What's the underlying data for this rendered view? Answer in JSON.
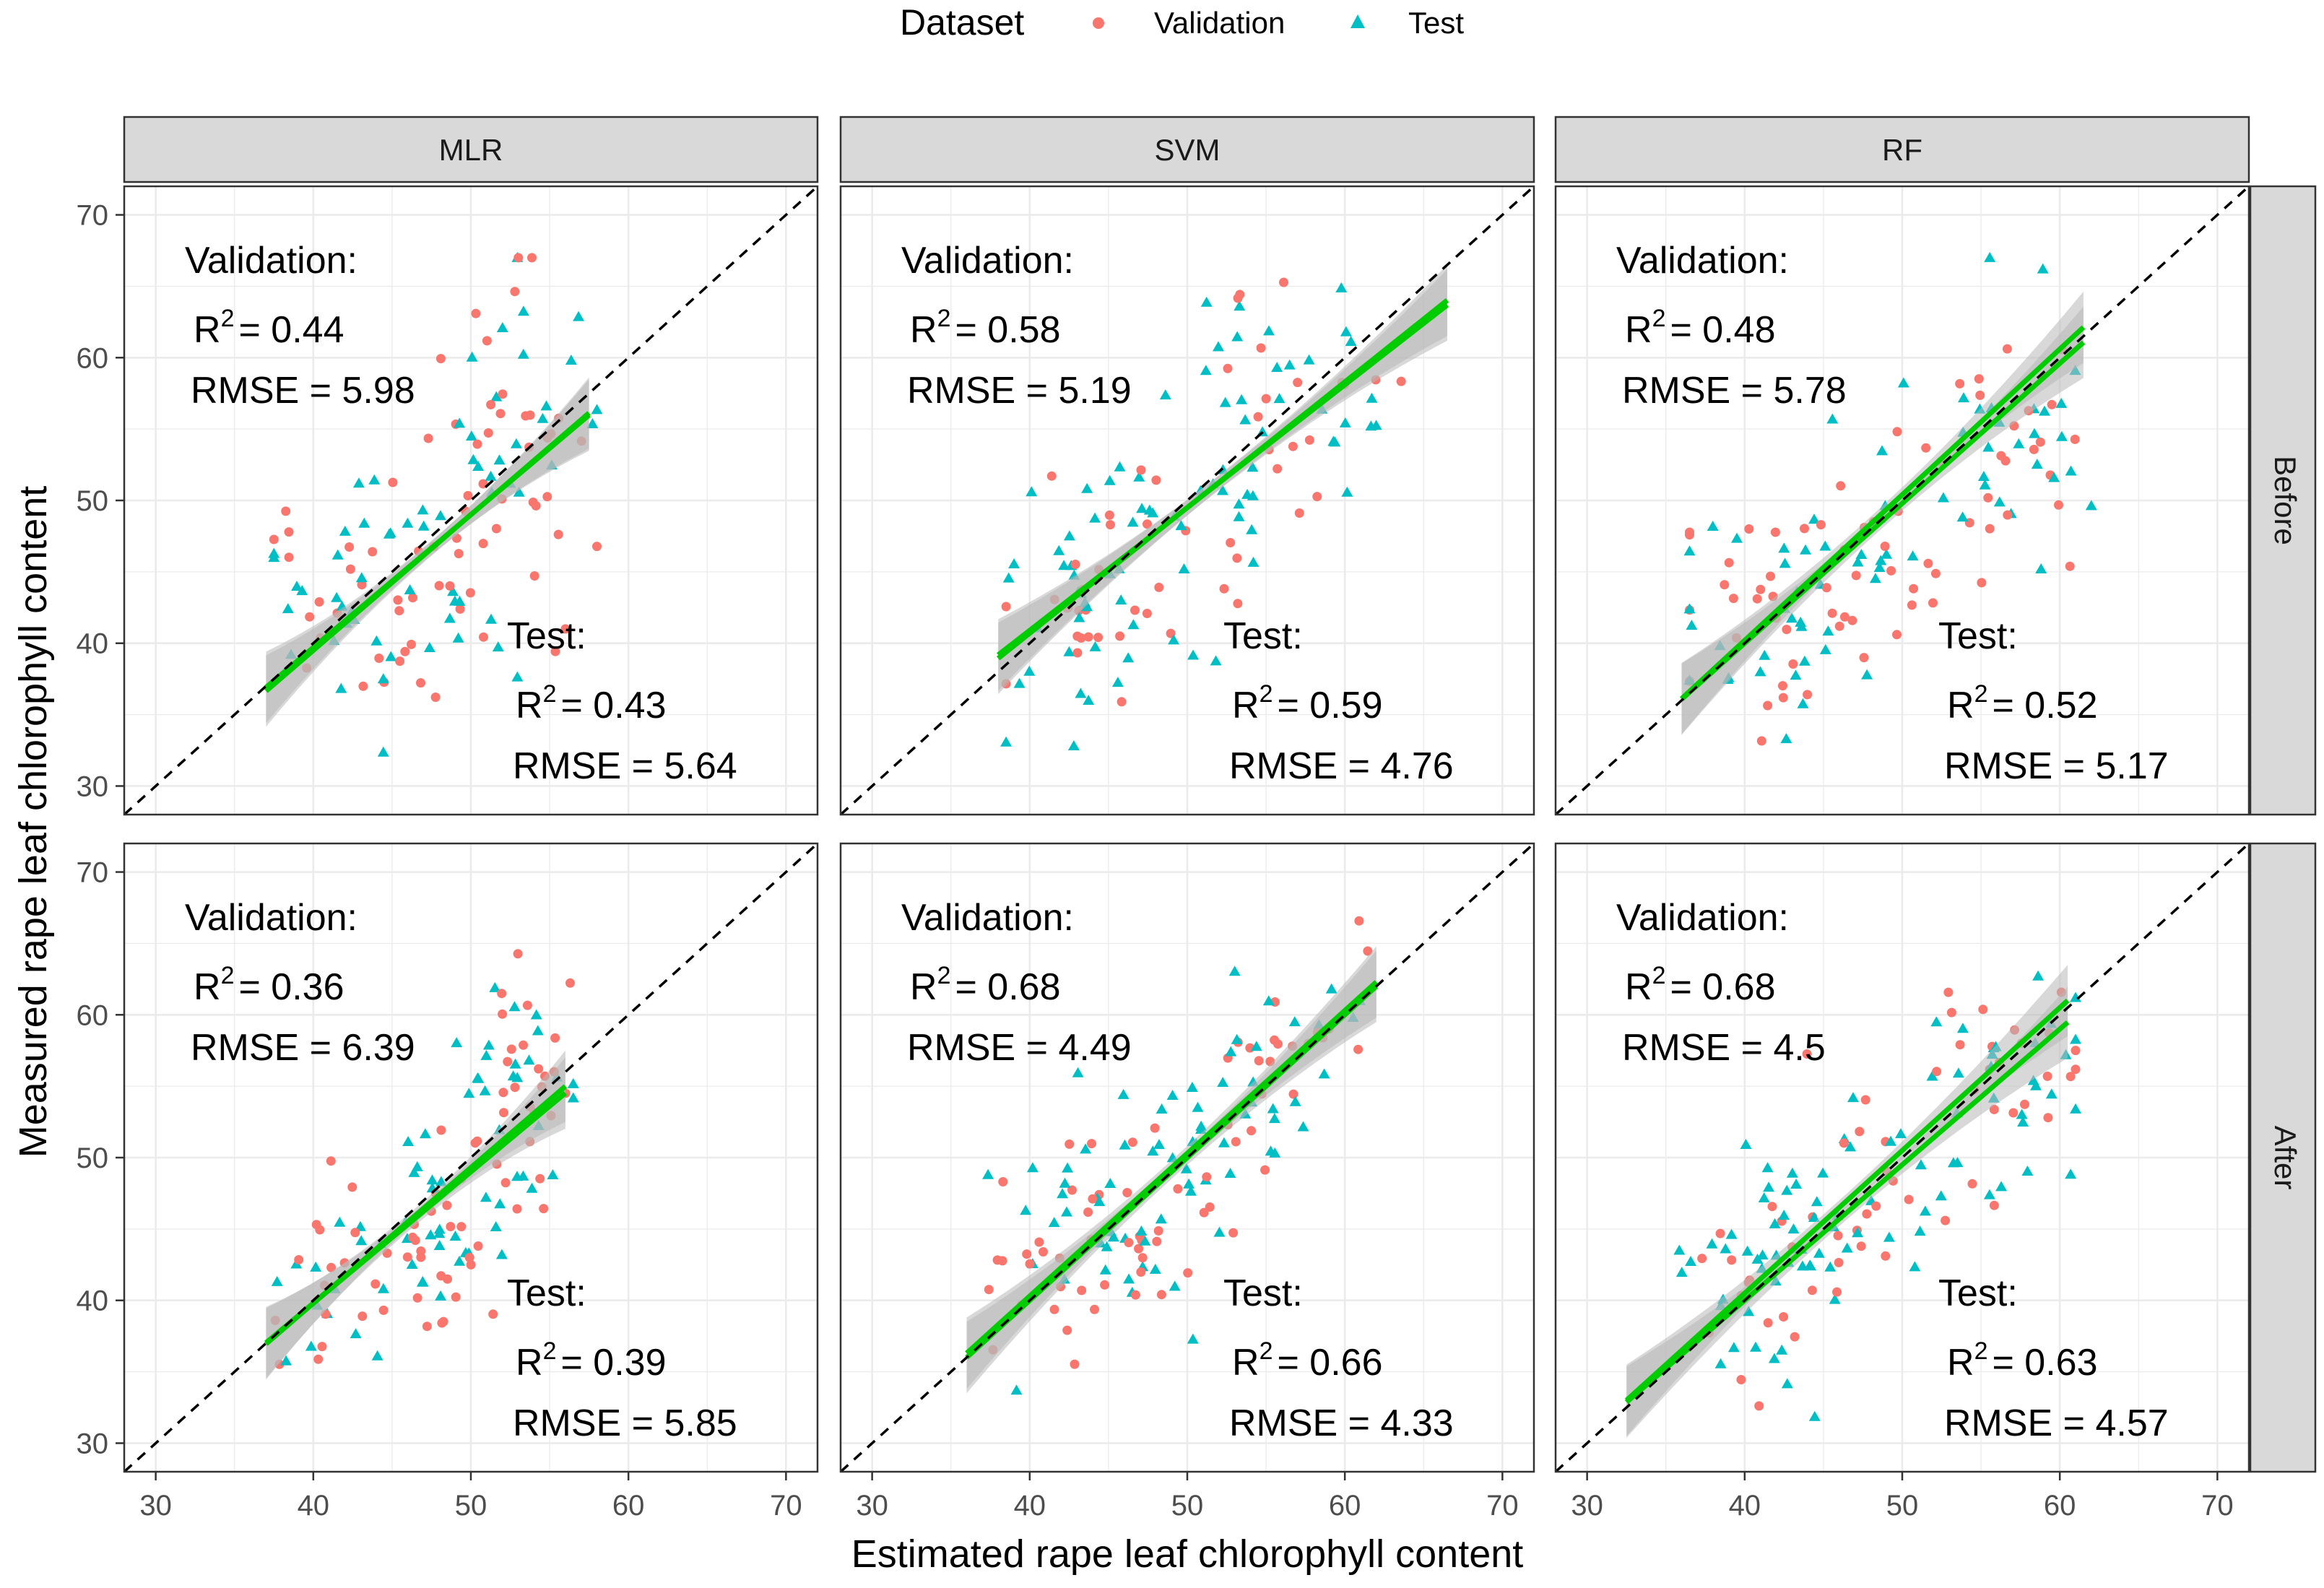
{
  "legend": {
    "title": "Dataset",
    "items": [
      {
        "label": "Validation",
        "shape": "circle",
        "color": "#F8766D"
      },
      {
        "label": "Test",
        "shape": "triangle",
        "color": "#00BFC4"
      }
    ]
  },
  "columns": [
    "MLR",
    "SVM",
    "RF"
  ],
  "rows": [
    "Before",
    "After"
  ],
  "xlabel": "Estimated rape leaf chlorophyll content",
  "ylabel": "Measured rape leaf chlorophyll content",
  "colors": {
    "validation": "#F8766D",
    "test": "#00BFC4",
    "fit": "#00CC00",
    "band": "#B8B8B8",
    "strip": "#D9D9D9",
    "grid": "#EBEBEB",
    "identity": "#000000"
  },
  "chart_data": {
    "type": "scatter",
    "xlim": [
      28,
      72
    ],
    "ylim": [
      28,
      72
    ],
    "xticks": [
      30,
      40,
      50,
      60,
      70
    ],
    "yticks": [
      30,
      40,
      50,
      60,
      70
    ],
    "identity_line": "dashed y = x",
    "panels": [
      {
        "model": "MLR",
        "condition": "Before",
        "validation": {
          "header": "Validation:",
          "r2_prefix": "R",
          "r2_exp": "2",
          "r2_value": "= 0.44",
          "rmse": "RMSE = 5.98"
        },
        "test": {
          "header": "Test:",
          "r2_prefix": "R",
          "r2_exp": "2",
          "r2_value": "= 0.43",
          "rmse": "RMSE = 5.64"
        },
        "x_range": [
          37,
          57.5
        ],
        "fits": {
          "validation": [
            0.93,
            2.5
          ],
          "test": [
            0.95,
            1.5
          ]
        },
        "sim": {
          "seed": 11,
          "regions": [
            {
              "cx": 42,
              "cy": 43,
              "sx": 3,
              "sy": 4.5,
              "n": 45
            },
            {
              "cx": 48,
              "cy": 45,
              "sx": 3,
              "sy": 4,
              "n": 30
            },
            {
              "cx": 53,
              "cy": 55,
              "sx": 2.5,
              "sy": 5.5,
              "n": 55
            }
          ]
        }
      },
      {
        "model": "SVM",
        "condition": "Before",
        "validation": {
          "header": "Validation:",
          "r2_prefix": "R",
          "r2_exp": "2",
          "r2_value": "= 0.58",
          "rmse": "RMSE = 5.19"
        },
        "test": {
          "header": "Test:",
          "r2_prefix": "R",
          "r2_exp": "2",
          "r2_value": "= 0.59",
          "rmse": "RMSE = 4.76"
        },
        "x_range": [
          38,
          66.5
        ],
        "fits": {
          "validation": [
            0.88,
            5.5
          ],
          "test": [
            0.86,
            6.5
          ]
        },
        "sim": {
          "seed": 23,
          "regions": [
            {
              "cx": 43,
              "cy": 42,
              "sx": 3,
              "sy": 4,
              "n": 50
            },
            {
              "cx": 49,
              "cy": 47,
              "sx": 3.5,
              "sy": 4,
              "n": 25
            },
            {
              "cx": 56,
              "cy": 56,
              "sx": 3.5,
              "sy": 4.5,
              "n": 55
            }
          ]
        }
      },
      {
        "model": "RF",
        "condition": "Before",
        "validation": {
          "header": "Validation:",
          "r2_prefix": "R",
          "r2_exp": "2",
          "r2_value": "= 0.48",
          "rmse": "RMSE = 5.78"
        },
        "test": {
          "header": "Test:",
          "r2_prefix": "R",
          "r2_exp": "2",
          "r2_value": "= 0.52",
          "rmse": "RMSE = 5.17"
        },
        "x_range": [
          36,
          61.5
        ],
        "fits": {
          "validation": [
            0.98,
            0.8
          ],
          "test": [
            1.02,
            -0.6
          ]
        },
        "sim": {
          "seed": 37,
          "regions": [
            {
              "cx": 42,
              "cy": 42,
              "sx": 3.5,
              "sy": 4.5,
              "n": 55
            },
            {
              "cx": 49,
              "cy": 47,
              "sx": 3.5,
              "sy": 5,
              "n": 35
            },
            {
              "cx": 57,
              "cy": 55,
              "sx": 2.5,
              "sy": 5,
              "n": 45
            }
          ]
        }
      },
      {
        "model": "MLR",
        "condition": "After",
        "validation": {
          "header": "Validation:",
          "r2_prefix": "R",
          "r2_exp": "2",
          "r2_value": "= 0.36",
          "rmse": "RMSE = 6.39"
        },
        "test": {
          "header": "Test:",
          "r2_prefix": "R",
          "r2_exp": "2",
          "r2_value": "= 0.39",
          "rmse": "RMSE = 5.85"
        },
        "x_range": [
          37,
          56
        ],
        "fits": {
          "validation": [
            0.92,
            3.0
          ],
          "test": [
            0.95,
            1.8
          ]
        },
        "sim": {
          "seed": 41,
          "regions": [
            {
              "cx": 41,
              "cy": 40,
              "sx": 2,
              "sy": 3.5,
              "n": 30
            },
            {
              "cx": 48.5,
              "cy": 44,
              "sx": 2.2,
              "sy": 3,
              "n": 55
            },
            {
              "cx": 53,
              "cy": 55,
              "sx": 2.2,
              "sy": 4.5,
              "n": 50
            }
          ]
        }
      },
      {
        "model": "SVM",
        "condition": "After",
        "validation": {
          "header": "Validation:",
          "r2_prefix": "R",
          "r2_exp": "2",
          "r2_value": "= 0.68",
          "rmse": "RMSE = 4.49"
        },
        "test": {
          "header": "Test:",
          "r2_prefix": "R",
          "r2_exp": "2",
          "r2_value": "= 0.66",
          "rmse": "RMSE = 4.33"
        },
        "x_range": [
          36,
          62
        ],
        "fits": {
          "validation": [
            1.0,
            0.0
          ],
          "test": [
            1.0,
            0.3
          ]
        },
        "sim": {
          "seed": 53,
          "regions": [
            {
              "cx": 43,
              "cy": 43,
              "sx": 3.5,
              "sy": 3.5,
              "n": 60
            },
            {
              "cx": 50,
              "cy": 49,
              "sx": 3,
              "sy": 4,
              "n": 40
            },
            {
              "cx": 56,
              "cy": 57,
              "sx": 3,
              "sy": 3.5,
              "n": 40
            }
          ]
        }
      },
      {
        "model": "RF",
        "condition": "After",
        "validation": {
          "header": "Validation:",
          "r2_prefix": "R",
          "r2_exp": "2",
          "r2_value": "= 0.68",
          "rmse": "RMSE = 4.5"
        },
        "test": {
          "header": "Test:",
          "r2_prefix": "R",
          "r2_exp": "2",
          "r2_value": "= 0.63",
          "rmse": "RMSE = 4.57"
        },
        "x_range": [
          32.5,
          60.5
        ],
        "fits": {
          "validation": [
            1.0,
            0.5
          ],
          "test": [
            0.95,
            2.0
          ]
        },
        "sim": {
          "seed": 67,
          "regions": [
            {
              "cx": 42,
              "cy": 42,
              "sx": 3,
              "sy": 3.5,
              "n": 60
            },
            {
              "cx": 49,
              "cy": 48,
              "sx": 3.5,
              "sy": 4,
              "n": 40
            },
            {
              "cx": 57,
              "cy": 57,
              "sx": 2.5,
              "sy": 3.5,
              "n": 45
            }
          ]
        }
      }
    ]
  }
}
